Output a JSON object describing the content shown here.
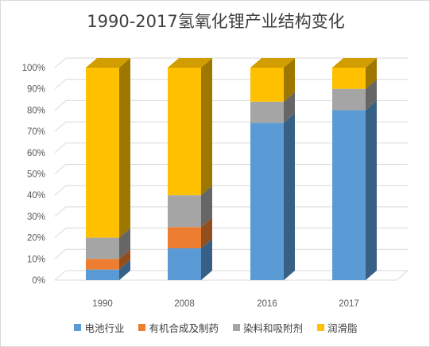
{
  "chart_data": {
    "type": "bar",
    "stacked": true,
    "three_d": true,
    "title": "1990-2017氢氧化锂产业结构变化",
    "categories": [
      "1990",
      "2008",
      "2016",
      "2017"
    ],
    "series": [
      {
        "name": "电池行业",
        "color": "#5B9BD5",
        "values": [
          5,
          15,
          74,
          80
        ]
      },
      {
        "name": "有机合成及制药",
        "color": "#ED7D31",
        "values": [
          5,
          10,
          0,
          0
        ]
      },
      {
        "name": "染料和吸附剂",
        "color": "#A5A5A5",
        "values": [
          10,
          15,
          10,
          10
        ]
      },
      {
        "name": "润滑脂",
        "color": "#FFC000",
        "values": [
          80,
          60,
          16,
          10
        ]
      }
    ],
    "ylim": [
      0,
      100
    ],
    "yticks": [
      "0%",
      "10%",
      "20%",
      "30%",
      "40%",
      "50%",
      "60%",
      "70%",
      "80%",
      "90%",
      "100%"
    ],
    "grid": true,
    "legend_position": "bottom"
  }
}
